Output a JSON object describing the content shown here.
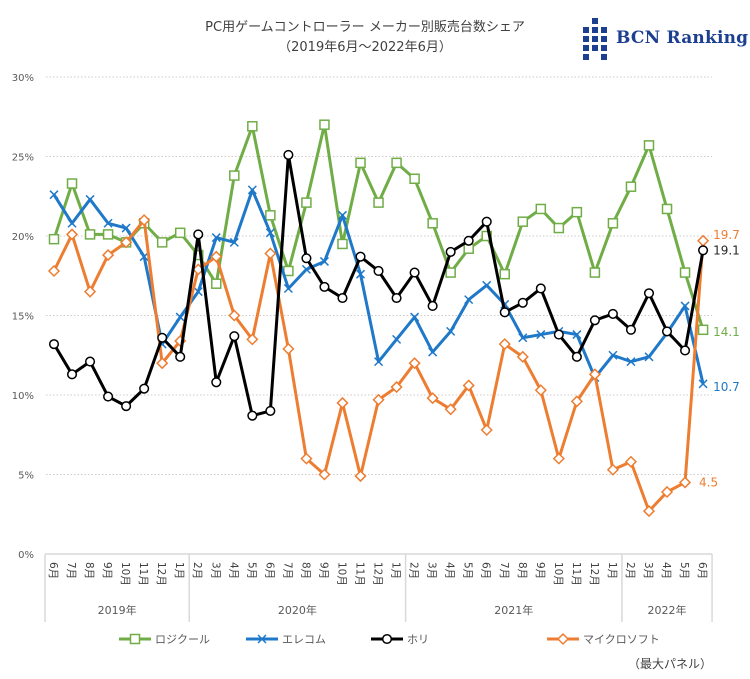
{
  "title": "PC用ゲームコントローラー メーカー別販売台数シェア",
  "subtitle": "（2019年6月～2022年6月）",
  "logo": {
    "text": "BCN Ranking",
    "color": "#1c3f8f",
    "icon": "bcn-grid-logo-icon"
  },
  "footnote": "（最大パネル）",
  "chart_data": {
    "type": "line",
    "title": "PC用ゲームコントローラー メーカー別販売台数シェア",
    "subtitle": "（2019年6月～2022年6月）",
    "xlabel": "",
    "ylabel": "",
    "ylim": [
      0,
      30
    ],
    "yticks": [
      0,
      5,
      10,
      15,
      20,
      25,
      30
    ],
    "ytick_labels": [
      "0%",
      "5%",
      "10%",
      "15%",
      "20%",
      "25%",
      "30%"
    ],
    "grid": true,
    "legend_position": "bottom",
    "categories": [
      "6月",
      "7月",
      "8月",
      "9月",
      "10月",
      "11月",
      "12月",
      "1月",
      "2月",
      "3月",
      "4月",
      "5月",
      "6月",
      "7月",
      "8月",
      "9月",
      "10月",
      "11月",
      "12月",
      "1月",
      "2月",
      "3月",
      "4月",
      "5月",
      "6月",
      "7月",
      "8月",
      "9月",
      "10月",
      "11月",
      "12月",
      "1月",
      "2月",
      "3月",
      "4月",
      "5月",
      "6月"
    ],
    "groups": [
      {
        "label": "2019年",
        "count": 8
      },
      {
        "label": "2020年",
        "count": 12
      },
      {
        "label": "2021年",
        "count": 12
      },
      {
        "label": "2022年",
        "count": 5
      }
    ],
    "series": [
      {
        "name": "ロジクール",
        "color": "#70ad47",
        "marker": "square",
        "values": [
          19.8,
          23.3,
          20.1,
          20.1,
          19.6,
          20.8,
          19.6,
          20.2,
          18.8,
          17.0,
          23.8,
          26.9,
          21.3,
          17.8,
          22.1,
          27.0,
          19.5,
          24.6,
          22.1,
          24.6,
          23.6,
          20.8,
          17.7,
          19.2,
          20.0,
          17.6,
          20.9,
          21.7,
          20.5,
          21.5,
          17.7,
          20.8,
          23.1,
          25.7,
          21.7,
          17.7,
          14.1
        ],
        "end_label": "14.1"
      },
      {
        "name": "エレコム",
        "color": "#1f78c8",
        "marker": "x",
        "values": [
          22.6,
          20.8,
          22.3,
          20.8,
          20.5,
          18.7,
          13.2,
          14.9,
          16.5,
          19.9,
          19.6,
          22.9,
          20.2,
          16.7,
          17.9,
          18.4,
          21.3,
          17.6,
          12.1,
          13.5,
          14.9,
          12.7,
          14.0,
          16.0,
          16.9,
          15.7,
          13.6,
          13.8,
          14.0,
          13.8,
          11.1,
          12.5,
          12.1,
          12.4,
          13.9,
          15.6,
          10.7
        ],
        "end_label": "10.7"
      },
      {
        "name": "ホリ",
        "color": "#000000",
        "marker": "circle",
        "values": [
          13.2,
          11.3,
          12.1,
          9.9,
          9.3,
          10.4,
          13.6,
          12.4,
          20.1,
          10.8,
          13.7,
          8.7,
          9.0,
          25.1,
          18.6,
          16.8,
          16.1,
          18.7,
          17.8,
          16.1,
          17.7,
          15.6,
          19.0,
          19.7,
          20.9,
          15.2,
          15.8,
          16.7,
          13.8,
          12.4,
          14.7,
          15.1,
          14.1,
          16.4,
          14.0,
          12.8,
          19.1
        ],
        "end_label": "19.1"
      },
      {
        "name": "マイクロソフト",
        "color": "#ed7d31",
        "marker": "diamond",
        "values": [
          17.8,
          20.1,
          16.5,
          18.8,
          19.6,
          21.0,
          12.0,
          13.4,
          17.9,
          18.7,
          15.0,
          13.5,
          18.9,
          12.9,
          6.0,
          5.0,
          9.5,
          4.9,
          9.7,
          10.5,
          12.0,
          9.8,
          9.1,
          10.6,
          7.8,
          13.2,
          12.4,
          10.3,
          6.0,
          9.6,
          11.3,
          5.3,
          5.8,
          2.7,
          3.9,
          4.5,
          19.7
        ],
        "end_label": "19.7",
        "extra_label": {
          "index": 35,
          "text": "4.5"
        }
      }
    ]
  }
}
